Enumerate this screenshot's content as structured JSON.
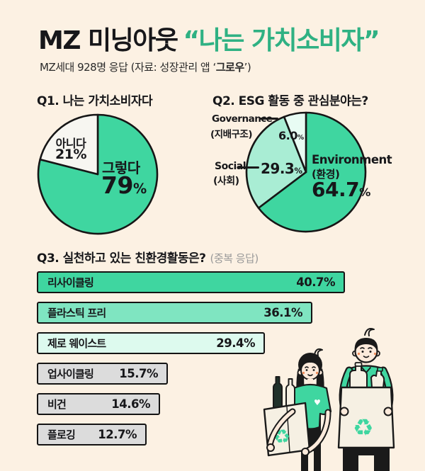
{
  "header": {
    "title_black": "MZ 미닝아웃",
    "title_green": "“나는 가치소비자”",
    "subtitle_prefix": "MZ세대 928명 응답 (자료: 성장관리 앱 ‘",
    "subtitle_bold": "그로우",
    "subtitle_suffix": "’)"
  },
  "percent": "%",
  "icons": {
    "recycle": "♻",
    "heart": "♥"
  },
  "palette": {
    "background": "#fcf1e3",
    "ink": "#17171a",
    "title_green": "#2fb183",
    "chart_green": "#3fd6a0",
    "light_green": "#a9edd4",
    "mint": "#e8fcf3",
    "gray_bar": "#dcdcdc"
  },
  "chart_data": [
    {
      "type": "pie",
      "question": "Q1. 나는 가치소비자다",
      "slices": [
        {
          "label": "그렇다",
          "value": 79,
          "value_text": "79",
          "color": "#3fd6a0"
        },
        {
          "label": "아니다",
          "value": 21,
          "value_text": "21",
          "color": "#f7f6f1"
        }
      ]
    },
    {
      "type": "pie",
      "question": "Q2. ESG 활동 중 관심분야는?",
      "slices": [
        {
          "label": "Environment",
          "sublabel": "(환경)",
          "value": 64.7,
          "value_text": "64.7",
          "color": "#3fd6a0"
        },
        {
          "label": "Social",
          "sublabel": "(사회)",
          "value": 29.3,
          "value_text": "29.3",
          "color": "#a9edd4"
        },
        {
          "label": "Governance",
          "sublabel": "(지배구조)",
          "value": 6.0,
          "value_text": "6.0",
          "color": "#e8fcf3"
        }
      ]
    },
    {
      "type": "bar",
      "question": "Q3. 실천하고 있는 친환경활동은?",
      "note": "(중복 응답)",
      "categories": [
        "리사이클링",
        "플라스틱 프리",
        "제로 웨이스트",
        "업사이클링",
        "비건",
        "플로깅"
      ],
      "values": [
        40.7,
        36.1,
        29.4,
        15.7,
        14.6,
        12.7
      ],
      "value_labels": [
        "40.7%",
        "36.1%",
        "29.4%",
        "15.7%",
        "14.6%",
        "12.7%"
      ],
      "colors": [
        "#3fd6a0",
        "#7fe5c1",
        "#ddfaee",
        "#dcdcdc",
        "#dcdcdc",
        "#dcdcdc"
      ]
    }
  ]
}
